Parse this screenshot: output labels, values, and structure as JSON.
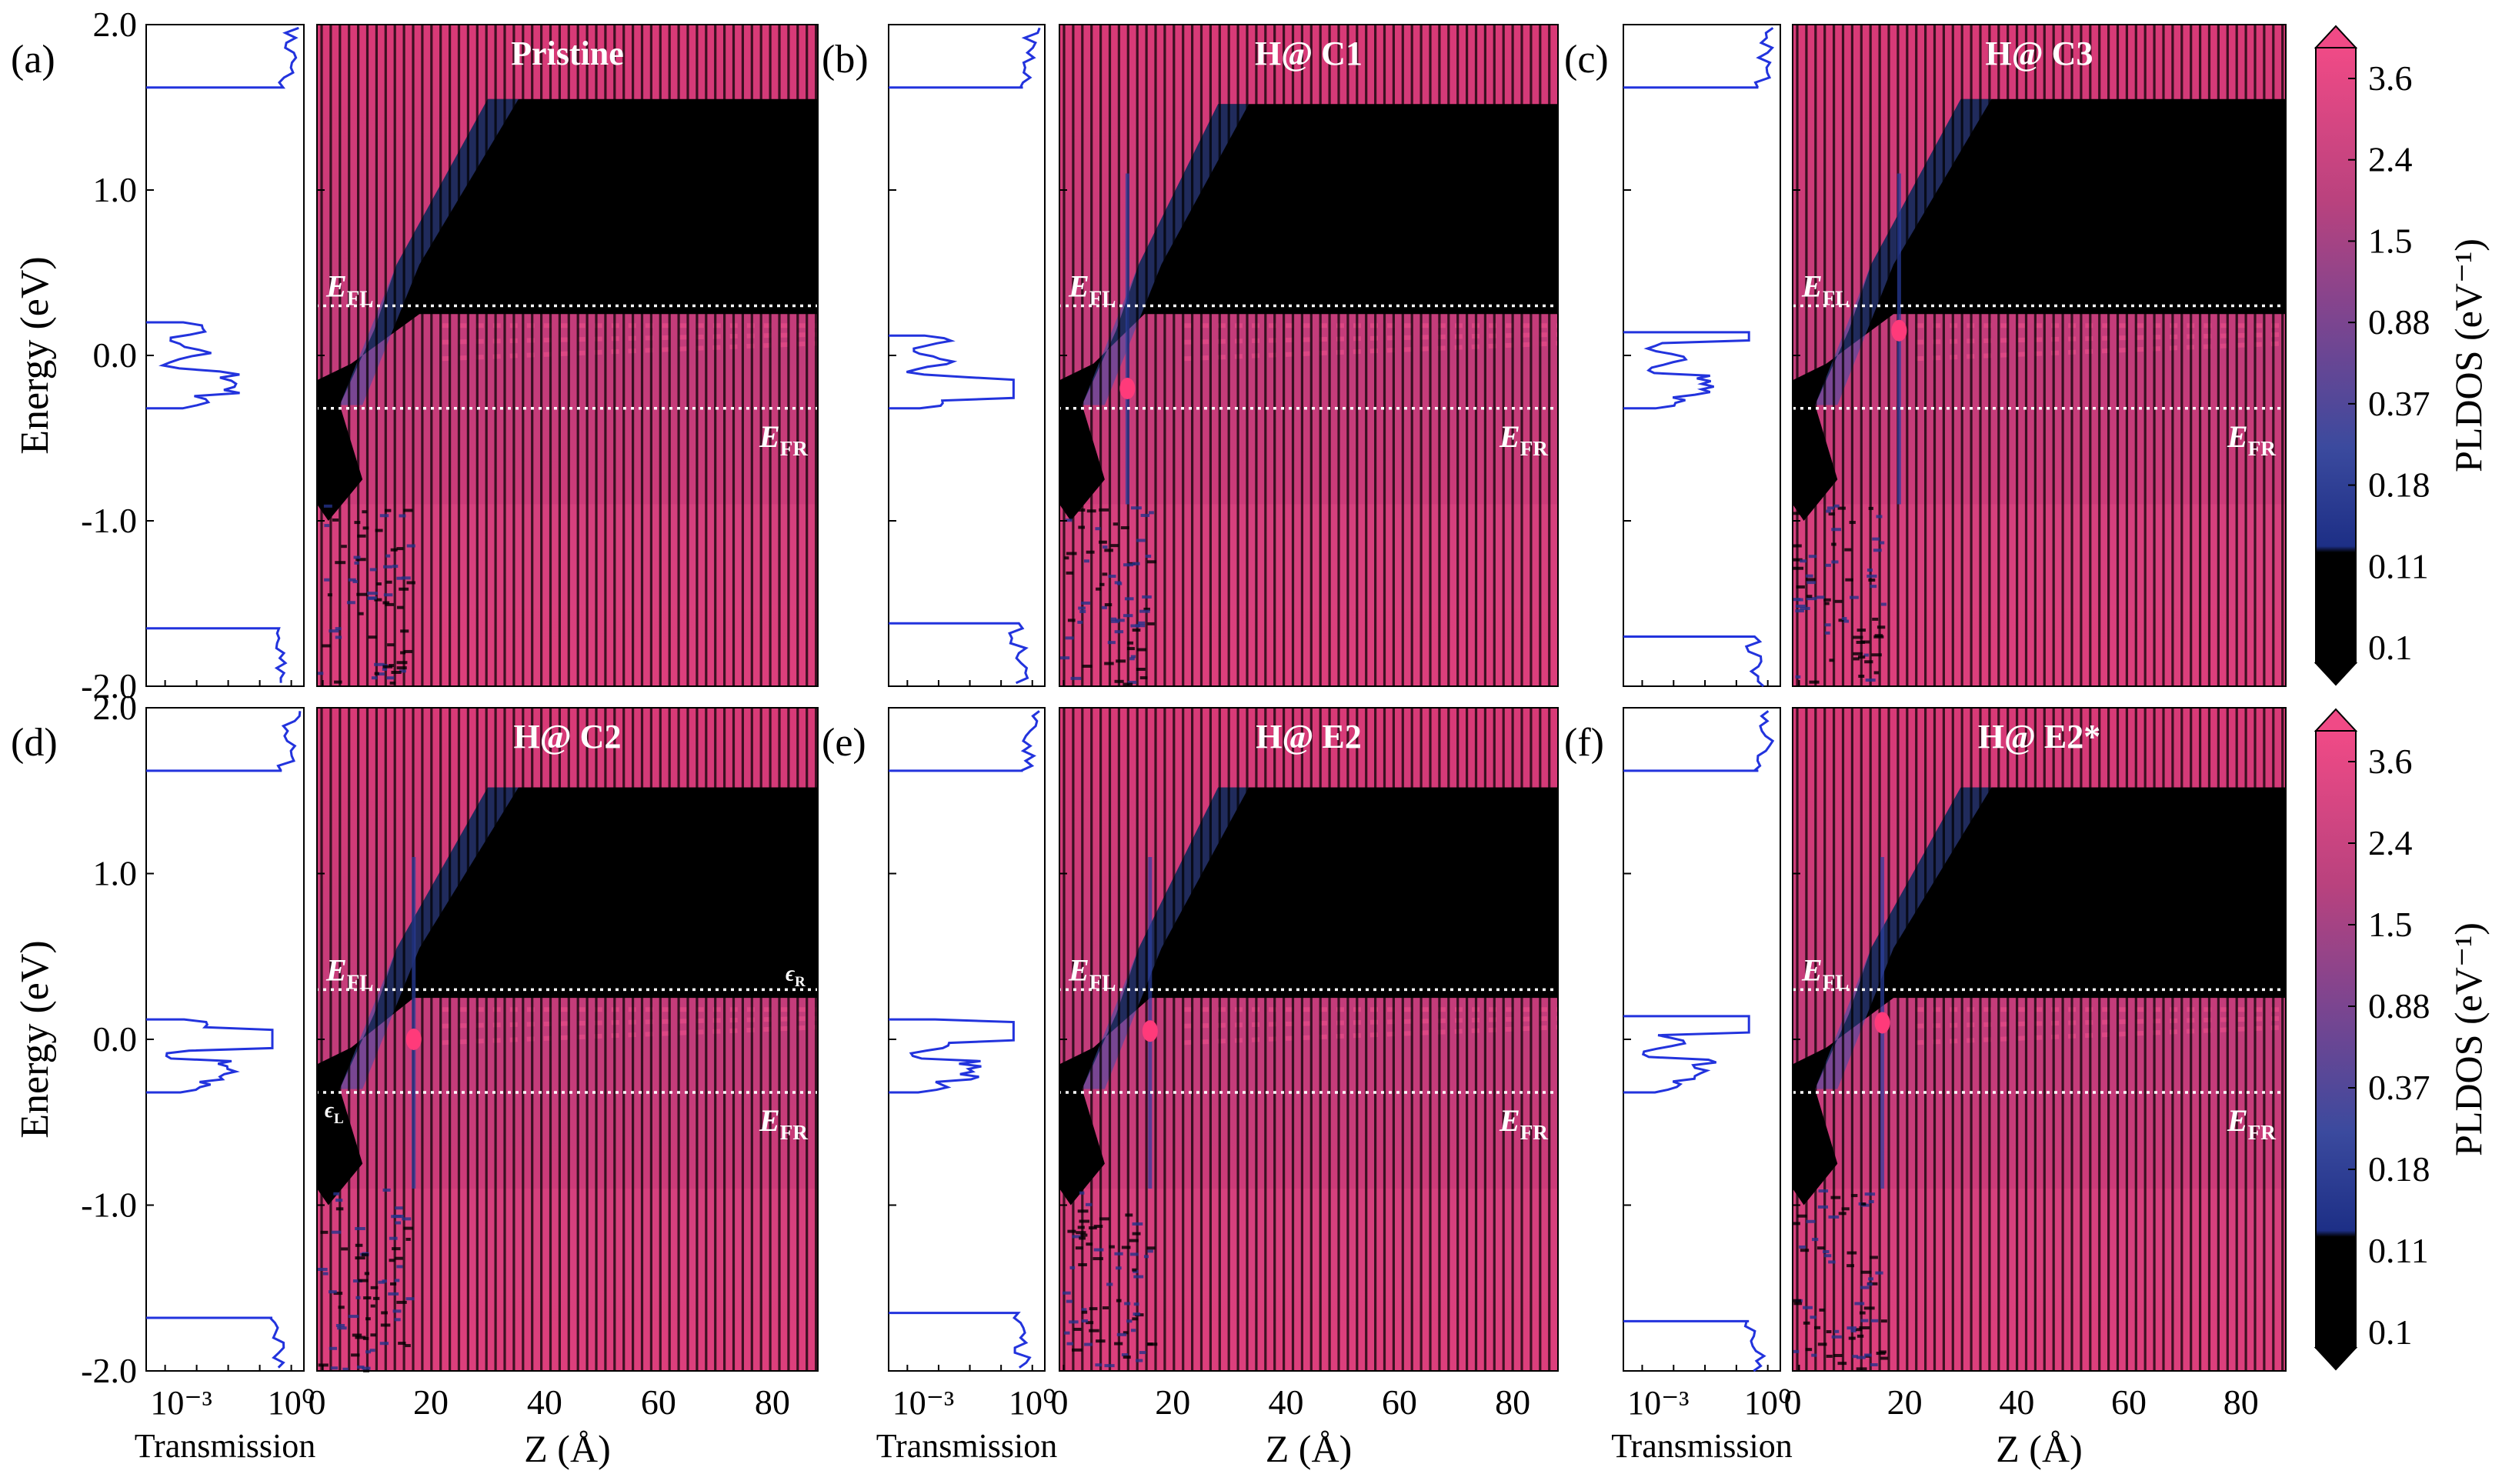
{
  "figure": {
    "energy_axis_label": "Energy (eV)",
    "z_axis_label": "Z (Å)",
    "transmission_axis_label": "Transmission",
    "colorbar_label": "PLDOS (eV⁻¹)",
    "efl_label": "E",
    "efl_sub": "FL",
    "efr_label": "E",
    "efr_sub": "FR",
    "eps_l_label": "ϵ",
    "eps_l_sub": "L",
    "eps_r_label": "ϵ",
    "eps_r_sub": "R",
    "colors": {
      "transmission_line": "#2233dd",
      "pldos_low": "#000000",
      "pldos_mid": "#3b4ea8",
      "pldos_high": "#ee3f7c",
      "dotted_line": "#ffffff"
    }
  },
  "chart_data": [
    {
      "type": "heatmap",
      "panel": "(a)",
      "title": "Pristine",
      "ylim": [
        -2.0,
        2.0
      ],
      "xlim": [
        0,
        88
      ],
      "y_ticks": [
        "2.0",
        "1.0",
        "0.0",
        "-1.0",
        "-2.0"
      ],
      "x_ticks": [
        "0",
        "20",
        "40",
        "60",
        "80"
      ],
      "transmission_ticks": [
        "10⁻³",
        "10⁰"
      ],
      "efl": 0.3,
      "efr": -0.32,
      "gap_left_edge_bottom_z": 18,
      "gap_flat_start_z": 30,
      "gap_top": 1.55,
      "defect_z": null,
      "defect_level": null,
      "transmission": {
        "channel_top_start": 1.62,
        "channel_bottom_end": -1.65,
        "mid_band": [
          -0.32,
          0.2
        ],
        "peak_energy": null
      }
    },
    {
      "type": "heatmap",
      "panel": "(b)",
      "title": "H@ C1",
      "ylim": [
        -2.0,
        2.0
      ],
      "xlim": [
        0,
        88
      ],
      "y_ticks": [
        "2.0",
        "1.0",
        "0.0",
        "-1.0",
        "-2.0"
      ],
      "x_ticks": [
        "0",
        "20",
        "40",
        "60",
        "80"
      ],
      "transmission_ticks": [
        "10⁻³",
        "10⁰"
      ],
      "efl": 0.3,
      "efr": -0.32,
      "gap_left_edge_bottom_z": 15,
      "gap_flat_start_z": 28,
      "gap_top": 1.52,
      "defect_z": 12,
      "defect_level": -0.2,
      "transmission": {
        "channel_top_start": 1.62,
        "channel_bottom_end": -1.62,
        "mid_band": [
          -0.32,
          0.12
        ],
        "peak_energy": -0.2
      }
    },
    {
      "type": "heatmap",
      "panel": "(c)",
      "title": "H@ C3",
      "ylim": [
        -2.0,
        2.0
      ],
      "xlim": [
        0,
        88
      ],
      "y_ticks": [
        "2.0",
        "1.0",
        "0.0",
        "-1.0",
        "-2.0"
      ],
      "x_ticks": [
        "0",
        "20",
        "40",
        "60",
        "80"
      ],
      "transmission_ticks": [
        "10⁻³",
        "10⁰"
      ],
      "efl": 0.3,
      "efr": -0.32,
      "gap_left_edge_bottom_z": 18,
      "gap_flat_start_z": 30,
      "gap_top": 1.55,
      "defect_z": 19,
      "defect_level": 0.15,
      "transmission": {
        "channel_top_start": 1.62,
        "channel_bottom_end": -1.7,
        "mid_band": [
          -0.32,
          0.14
        ],
        "peak_energy": 0.15
      }
    },
    {
      "type": "heatmap",
      "panel": "(d)",
      "title": "H@ C2",
      "ylim": [
        -2.0,
        2.0
      ],
      "xlim": [
        0,
        88
      ],
      "y_ticks": [
        "2.0",
        "1.0",
        "0.0",
        "-1.0",
        "-2.0"
      ],
      "x_ticks": [
        "0",
        "20",
        "40",
        "60",
        "80"
      ],
      "transmission_ticks": [
        "10⁻³",
        "10⁰"
      ],
      "efl": 0.3,
      "efr": -0.32,
      "gap_left_edge_bottom_z": 17,
      "gap_flat_start_z": 30,
      "gap_top": 1.52,
      "defect_z": 17,
      "defect_level": 0.0,
      "transmission": {
        "channel_top_start": 1.62,
        "channel_bottom_end": -1.68,
        "mid_band": [
          -0.32,
          0.12
        ],
        "peak_energy": 0.0
      }
    },
    {
      "type": "heatmap",
      "panel": "(e)",
      "title": "H@ E2",
      "ylim": [
        -2.0,
        2.0
      ],
      "xlim": [
        0,
        88
      ],
      "y_ticks": [
        "2.0",
        "1.0",
        "0.0",
        "-1.0",
        "-2.0"
      ],
      "x_ticks": [
        "0",
        "20",
        "40",
        "60",
        "80"
      ],
      "transmission_ticks": [
        "10⁻³",
        "10⁰"
      ],
      "efl": 0.3,
      "efr": -0.32,
      "gap_left_edge_bottom_z": 16,
      "gap_flat_start_z": 28,
      "gap_top": 1.52,
      "defect_z": 16,
      "defect_level": 0.05,
      "transmission": {
        "channel_top_start": 1.62,
        "channel_bottom_end": -1.65,
        "mid_band": [
          -0.32,
          0.12
        ],
        "peak_energy": 0.05
      }
    },
    {
      "type": "heatmap",
      "panel": "(f)",
      "title": "H@ E2*",
      "ylim": [
        -2.0,
        2.0
      ],
      "xlim": [
        0,
        88
      ],
      "y_ticks": [
        "2.0",
        "1.0",
        "0.0",
        "-1.0",
        "-2.0"
      ],
      "x_ticks": [
        "0",
        "20",
        "40",
        "60",
        "80"
      ],
      "transmission_ticks": [
        "10⁻³",
        "10⁰"
      ],
      "efl": 0.3,
      "efr": -0.32,
      "gap_left_edge_bottom_z": 18,
      "gap_flat_start_z": 30,
      "gap_top": 1.52,
      "defect_z": 16,
      "defect_level": 0.1,
      "transmission": {
        "channel_top_start": 1.62,
        "channel_bottom_end": -1.7,
        "mid_band": [
          -0.32,
          0.14
        ],
        "peak_energy": 0.1
      }
    }
  ],
  "colorbar": {
    "type": "colorbar",
    "ticks": [
      "3.6",
      "2.4",
      "1.5",
      "0.88",
      "0.37",
      "0.18",
      "0.11",
      "0.1"
    ],
    "values": [
      3.6,
      2.4,
      1.5,
      0.88,
      0.37,
      0.18,
      0.11,
      0.1
    ],
    "colors": [
      "#ee4782",
      "#d8447e",
      "#b2427c",
      "#8d4385",
      "#64488f",
      "#3d4a9b",
      "#1c3c86",
      "#000000"
    ]
  }
}
